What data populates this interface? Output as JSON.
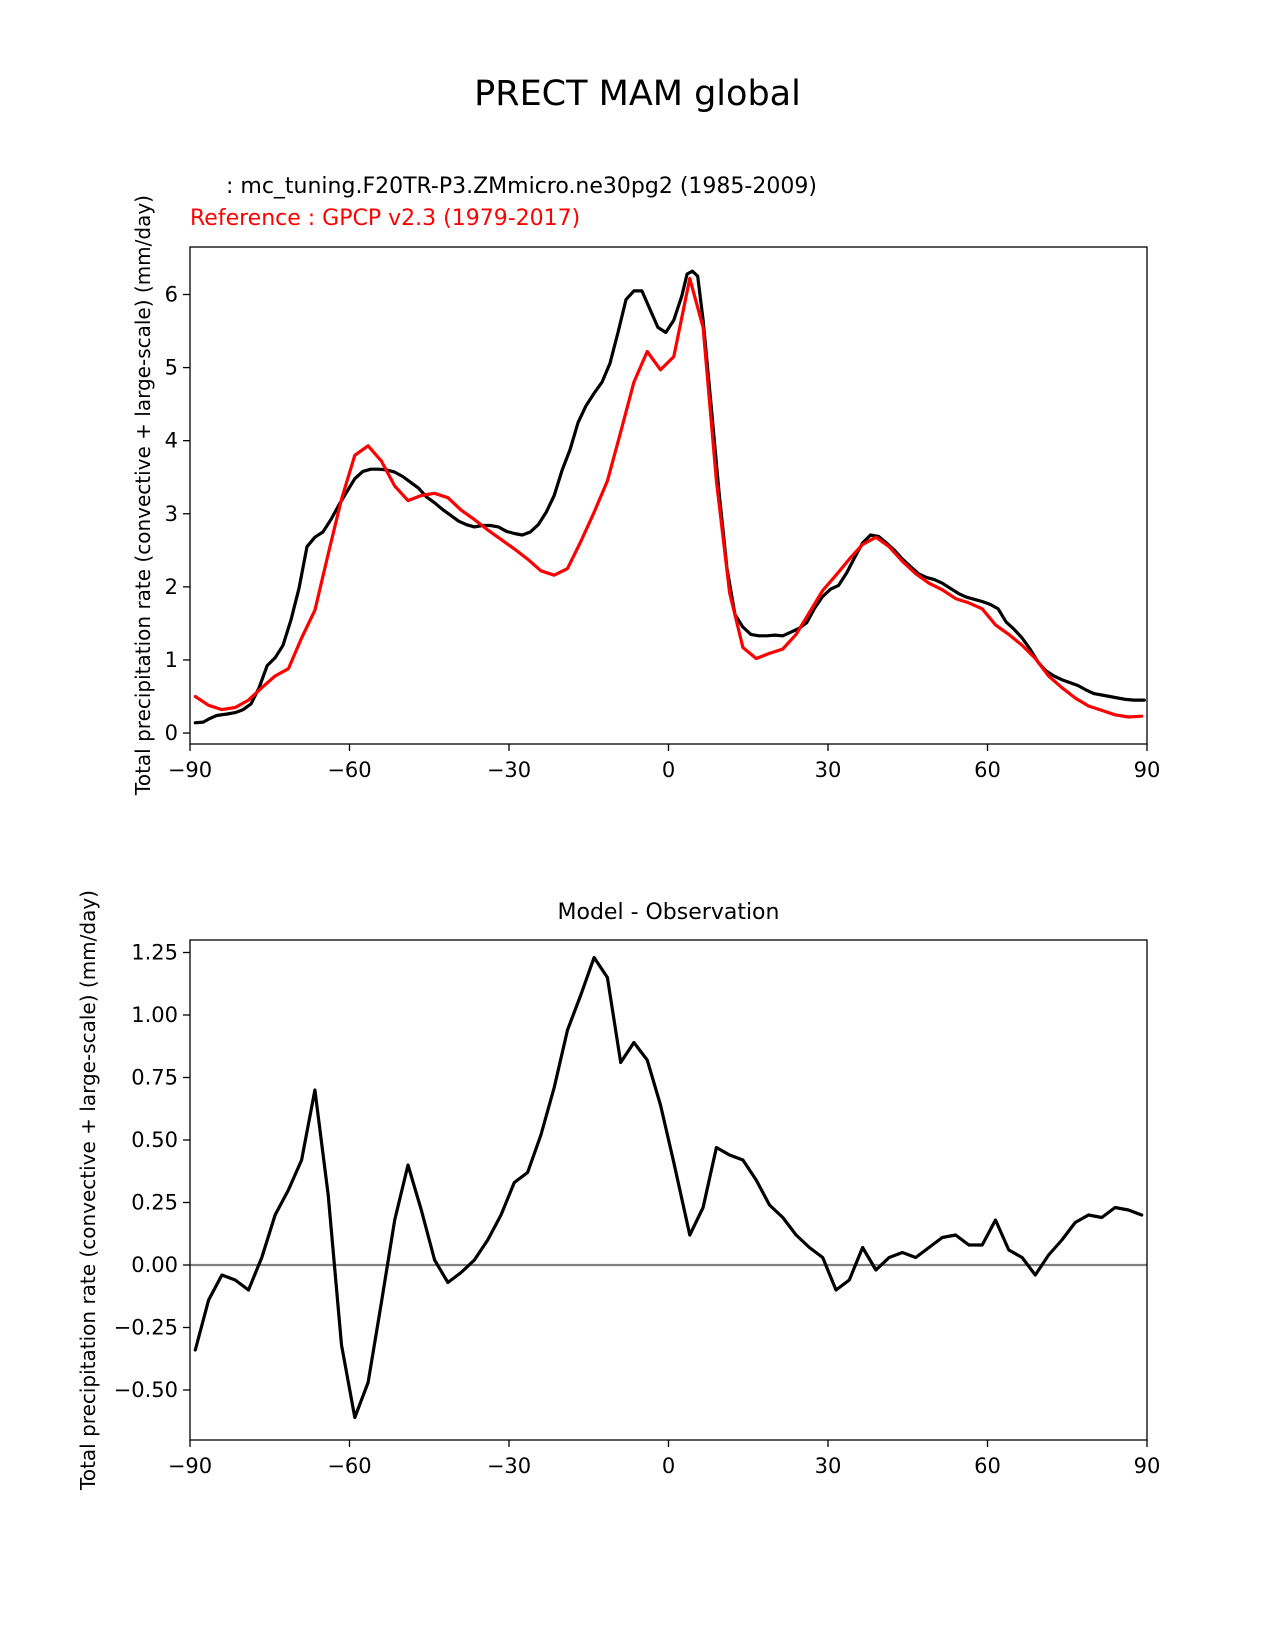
{
  "figure": {
    "title": "PRECT MAM global",
    "test_label": "   : mc_tuning.F20TR-P3.ZMmicro.ne30pg2 (1985-2009)",
    "ref_label": "Reference : GPCP v2.3 (1979-2017)",
    "diff_title": "Model - Observation"
  },
  "colors": {
    "test": "#000000",
    "reference": "#ff0000",
    "diff": "#000000",
    "zero_line": "#808080"
  },
  "chart_data": [
    {
      "type": "line",
      "title": "",
      "xlabel": "",
      "ylabel": "Total precipitation rate (convective + large-scale) (mm/day)",
      "xlim": [
        -90,
        90
      ],
      "ylim": [
        -0.15,
        6.65
      ],
      "xticks": [
        -90,
        -60,
        -30,
        0,
        30,
        60,
        90
      ],
      "xtick_labels": [
        "−90",
        "−60",
        "−30",
        "0",
        "30",
        "60",
        "90"
      ],
      "yticks": [
        0,
        1,
        2,
        3,
        4,
        5,
        6
      ],
      "ytick_labels": [
        "0",
        "1",
        "2",
        "3",
        "4",
        "5",
        "6"
      ],
      "grid": false,
      "series": [
        {
          "name": "mc_tuning.F20TR-P3.ZMmicro.ne30pg2 (1985-2009)",
          "x": [
            -89,
            -87.5,
            -86.5,
            -85,
            -83,
            -81.5,
            -80,
            -78.5,
            -77,
            -75.5,
            -74,
            -72.5,
            -71,
            -69.5,
            -68,
            -66.5,
            -65,
            -63.5,
            -62,
            -60.5,
            -59,
            -57.5,
            -56,
            -54.5,
            -53,
            -51.5,
            -50,
            -48.5,
            -47,
            -45.5,
            -44,
            -42.5,
            -41,
            -39.5,
            -38,
            -36.5,
            -35,
            -33.5,
            -32,
            -30.5,
            -29,
            -27.5,
            -26,
            -24.5,
            -23,
            -21.5,
            -20,
            -18.5,
            -17,
            -15.5,
            -14,
            -12.5,
            -11,
            -9.5,
            -8,
            -6.5,
            -5,
            -3.5,
            -2,
            -0.5,
            1,
            2.5,
            3.5,
            4.5,
            5.5,
            6.5,
            8,
            9.5,
            11,
            12.5,
            14,
            15.5,
            17,
            18.5,
            20,
            21.5,
            23,
            24.5,
            26,
            27.5,
            29,
            30.5,
            32,
            33.5,
            35,
            36.5,
            38,
            39.5,
            41,
            42.5,
            44,
            45.5,
            47,
            48.5,
            50,
            51.5,
            53,
            54.5,
            56,
            57.5,
            59,
            60.5,
            62,
            63.5,
            65,
            66.5,
            68,
            69.5,
            71,
            72.5,
            74,
            75.5,
            77,
            78.5,
            80,
            81.5,
            83,
            84.5,
            86,
            87.5,
            89.5
          ],
          "y": [
            0.14,
            0.15,
            0.19,
            0.24,
            0.26,
            0.28,
            0.32,
            0.4,
            0.62,
            0.92,
            1.03,
            1.2,
            1.55,
            1.98,
            2.55,
            2.68,
            2.75,
            2.92,
            3.12,
            3.3,
            3.48,
            3.58,
            3.61,
            3.61,
            3.6,
            3.57,
            3.51,
            3.43,
            3.35,
            3.23,
            3.15,
            3.06,
            2.98,
            2.9,
            2.85,
            2.82,
            2.84,
            2.84,
            2.82,
            2.76,
            2.73,
            2.71,
            2.75,
            2.85,
            3.02,
            3.25,
            3.6,
            3.88,
            4.25,
            4.48,
            4.65,
            4.8,
            5.06,
            5.48,
            5.93,
            6.05,
            6.05,
            5.8,
            5.55,
            5.48,
            5.65,
            5.98,
            6.28,
            6.32,
            6.25,
            5.65,
            4.5,
            3.3,
            2.25,
            1.62,
            1.45,
            1.35,
            1.33,
            1.33,
            1.34,
            1.33,
            1.38,
            1.43,
            1.51,
            1.71,
            1.87,
            1.97,
            2.02,
            2.19,
            2.4,
            2.6,
            2.71,
            2.69,
            2.6,
            2.5,
            2.38,
            2.28,
            2.18,
            2.13,
            2.1,
            2.05,
            1.98,
            1.91,
            1.86,
            1.83,
            1.8,
            1.76,
            1.7,
            1.52,
            1.42,
            1.3,
            1.15,
            0.97,
            0.85,
            0.78,
            0.73,
            0.69,
            0.65,
            0.59,
            0.54,
            0.52,
            0.5,
            0.48,
            0.46,
            0.45,
            0.45
          ]
        },
        {
          "name": "GPCP v2.3 (1979-2017)",
          "x": [
            -89,
            -86.5,
            -84,
            -81.5,
            -79,
            -76.5,
            -74,
            -71.5,
            -69,
            -66.5,
            -64,
            -61.5,
            -59,
            -56.5,
            -54,
            -51.5,
            -49,
            -46.5,
            -44,
            -41.5,
            -39,
            -36.5,
            -34,
            -31.5,
            -29,
            -26.5,
            -24,
            -21.5,
            -19,
            -16.5,
            -14,
            -11.5,
            -9,
            -6.5,
            -4,
            -1.5,
            1,
            4,
            6.5,
            9,
            11.5,
            14,
            16.5,
            19,
            21.5,
            24,
            26.5,
            29,
            31.5,
            34,
            36.5,
            39,
            41.5,
            44,
            46.5,
            49,
            51.5,
            54,
            56.5,
            59,
            61.5,
            64,
            66.5,
            69,
            71.5,
            74,
            76.5,
            79,
            81.5,
            84,
            86.5,
            89
          ],
          "y": [
            0.5,
            0.38,
            0.32,
            0.35,
            0.45,
            0.62,
            0.78,
            0.88,
            1.3,
            1.68,
            2.45,
            3.2,
            3.8,
            3.93,
            3.72,
            3.38,
            3.18,
            3.25,
            3.28,
            3.22,
            3.05,
            2.92,
            2.78,
            2.65,
            2.52,
            2.38,
            2.22,
            2.16,
            2.25,
            2.62,
            3.02,
            3.45,
            4.12,
            4.8,
            5.22,
            4.97,
            5.15,
            6.22,
            5.55,
            3.45,
            1.92,
            1.17,
            1.02,
            1.09,
            1.15,
            1.35,
            1.65,
            1.95,
            2.16,
            2.38,
            2.58,
            2.68,
            2.55,
            2.35,
            2.18,
            2.05,
            1.96,
            1.84,
            1.78,
            1.7,
            1.48,
            1.35,
            1.2,
            1.02,
            0.78,
            0.62,
            0.48,
            0.37,
            0.31,
            0.25,
            0.22,
            0.23
          ]
        }
      ]
    },
    {
      "type": "line",
      "title": "Model - Observation",
      "xlabel": "",
      "ylabel": "Total precipitation rate (convective + large-scale) (mm/day)",
      "xlim": [
        -90,
        90
      ],
      "ylim": [
        -0.7,
        1.3
      ],
      "xticks": [
        -90,
        -60,
        -30,
        0,
        30,
        60,
        90
      ],
      "xtick_labels": [
        "−90",
        "−60",
        "−30",
        "0",
        "30",
        "60",
        "90"
      ],
      "yticks": [
        -0.5,
        -0.25,
        0,
        0.25,
        0.5,
        0.75,
        1.0,
        1.25
      ],
      "ytick_labels": [
        "−0.50",
        "−0.25",
        "0.00",
        "0.25",
        "0.50",
        "0.75",
        "1.00",
        "1.25"
      ],
      "grid": false,
      "zero_line": 0,
      "series": [
        {
          "x": [
            -89,
            -86.5,
            -84,
            -81.5,
            -79,
            -76.5,
            -74,
            -71.5,
            -69,
            -66.5,
            -64,
            -61.5,
            -59,
            -56.5,
            -54,
            -51.5,
            -49,
            -46.5,
            -44,
            -41.5,
            -39,
            -36.5,
            -34,
            -31.5,
            -29,
            -26.5,
            -24,
            -21.5,
            -19,
            -16.5,
            -14,
            -11.5,
            -9,
            -6.5,
            -4,
            -1.5,
            1,
            4,
            6.5,
            9,
            11.5,
            14,
            16.5,
            19,
            21.5,
            24,
            26.5,
            29,
            31.5,
            34,
            36.5,
            39,
            41.5,
            44,
            46.5,
            49,
            51.5,
            54,
            56.5,
            59,
            61.5,
            64,
            66.5,
            69,
            71.5,
            74,
            76.5,
            79,
            81.5,
            84,
            86.5,
            89
          ],
          "y": [
            -0.34,
            -0.14,
            -0.04,
            -0.06,
            -0.1,
            0.03,
            0.2,
            0.3,
            0.42,
            0.7,
            0.28,
            -0.32,
            -0.61,
            -0.47,
            -0.15,
            0.18,
            0.4,
            0.22,
            0.02,
            -0.07,
            -0.03,
            0.02,
            0.1,
            0.2,
            0.33,
            0.37,
            0.52,
            0.71,
            0.94,
            1.08,
            1.23,
            1.15,
            0.81,
            0.89,
            0.82,
            0.64,
            0.41,
            0.12,
            0.23,
            0.47,
            0.44,
            0.42,
            0.34,
            0.24,
            0.19,
            0.12,
            0.07,
            0.03,
            -0.1,
            -0.06,
            0.07,
            -0.02,
            0.03,
            0.05,
            0.03,
            0.07,
            0.11,
            0.12,
            0.08,
            0.08,
            0.18,
            0.06,
            0.03,
            -0.04,
            0.04,
            0.1,
            0.17,
            0.2,
            0.19,
            0.23,
            0.22,
            0.2
          ]
        }
      ]
    }
  ]
}
